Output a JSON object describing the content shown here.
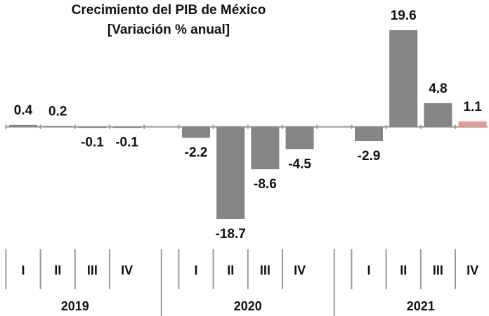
{
  "chart_data": {
    "type": "bar",
    "title": "Crecimiento del PIB de México",
    "subtitle": "[Variación % anual]",
    "categories": [
      "I",
      "II",
      "III",
      "IV",
      null,
      "I",
      "II",
      "III",
      "IV",
      null,
      "I",
      "II",
      "III",
      "IV"
    ],
    "values": [
      0.4,
      0.2,
      -0.1,
      -0.1,
      null,
      -2.2,
      -18.7,
      -8.6,
      -4.5,
      null,
      -2.9,
      19.6,
      4.8,
      1.1
    ],
    "colors": [
      "#858585",
      "#858585",
      "#858585",
      "#858585",
      null,
      "#858585",
      "#858585",
      "#858585",
      "#858585",
      null,
      "#858585",
      "#858585",
      "#858585",
      "#e29a9a"
    ],
    "years": [
      "2019",
      "2020",
      "2021"
    ]
  }
}
